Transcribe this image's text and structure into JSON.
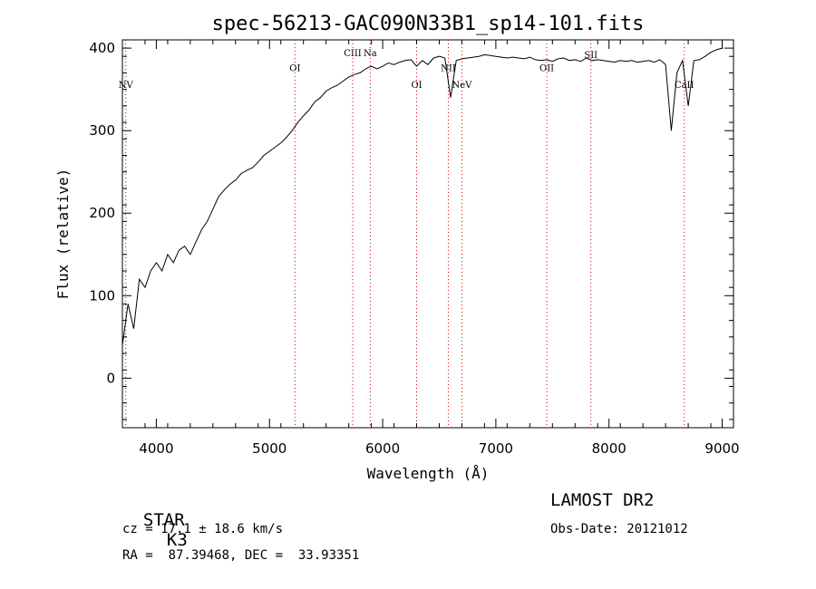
{
  "chart_data": {
    "type": "line",
    "title": "spec-56213-GAC090N33B1_sp14-101.fits",
    "xlabel": "Wavelength (Å)",
    "ylabel": "Flux (relative)",
    "xlim": [
      3700,
      9100
    ],
    "ylim": [
      -60,
      410
    ],
    "xticks": [
      4000,
      5000,
      6000,
      7000,
      8000,
      9000
    ],
    "yticks": [
      0,
      100,
      200,
      300,
      400
    ],
    "grid": false,
    "series": [
      {
        "x": [
          3700,
          3750,
          3800,
          3850,
          3900,
          3950,
          4000,
          4050,
          4100,
          4150,
          4200,
          4250,
          4300,
          4350,
          4400,
          4450,
          4500,
          4550,
          4600,
          4650,
          4700,
          4750,
          4800,
          4850,
          4900,
          4950,
          5000,
          5050,
          5100,
          5150,
          5200,
          5250,
          5300,
          5350,
          5400,
          5450,
          5500,
          5550,
          5600,
          5650,
          5700,
          5750,
          5800,
          5850,
          5900,
          5950,
          6000,
          6050,
          6100,
          6150,
          6200,
          6250,
          6300,
          6350,
          6400,
          6450,
          6500,
          6550,
          6600,
          6650,
          6700,
          6750,
          6800,
          6850,
          6900,
          6950,
          7000,
          7050,
          7100,
          7150,
          7200,
          7250,
          7300,
          7350,
          7400,
          7450,
          7500,
          7550,
          7600,
          7650,
          7700,
          7750,
          7800,
          7850,
          7900,
          7950,
          8000,
          8050,
          8100,
          8150,
          8200,
          8250,
          8300,
          8350,
          8400,
          8450,
          8500,
          8550,
          8600,
          8650,
          8700,
          8750,
          8800,
          8850,
          8900,
          8950,
          9000
        ],
        "y": [
          40,
          90,
          60,
          120,
          110,
          130,
          140,
          130,
          150,
          140,
          155,
          160,
          150,
          165,
          180,
          190,
          205,
          220,
          228,
          235,
          240,
          248,
          252,
          255,
          262,
          270,
          275,
          280,
          285,
          292,
          300,
          310,
          318,
          325,
          335,
          340,
          348,
          352,
          355,
          360,
          365,
          368,
          370,
          375,
          378,
          375,
          378,
          382,
          380,
          383,
          385,
          386,
          378,
          385,
          380,
          388,
          390,
          388,
          340,
          385,
          387,
          388,
          389,
          390,
          392,
          391,
          390,
          389,
          388,
          389,
          388,
          387,
          389,
          386,
          385,
          386,
          384,
          387,
          388,
          385,
          386,
          384,
          388,
          385,
          386,
          385,
          384,
          383,
          385,
          384,
          385,
          383,
          384,
          385,
          383,
          386,
          380,
          300,
          370,
          385,
          330,
          385,
          386,
          390,
          395,
          398,
          400
        ]
      }
    ],
    "spectral_lines": [
      {
        "label": "NV",
        "wavelength": 3730,
        "label_flux": 352
      },
      {
        "label": "OI",
        "wavelength": 5225,
        "label_flux": 372
      },
      {
        "label": "CIII",
        "wavelength": 5735,
        "label_flux": 390
      },
      {
        "label": "Na",
        "wavelength": 5890,
        "label_flux": 390
      },
      {
        "label": "OI",
        "wavelength": 6300,
        "label_flux": 352
      },
      {
        "label": "NII",
        "wavelength": 6580,
        "label_flux": 372
      },
      {
        "label": "NeV",
        "wavelength": 6700,
        "label_flux": 352
      },
      {
        "label": "OII",
        "wavelength": 7450,
        "label_flux": 372
      },
      {
        "label": "SII",
        "wavelength": 7840,
        "label_flux": 388
      },
      {
        "label": "CaII",
        "wavelength": 8665,
        "label_flux": 352
      }
    ],
    "colors": {
      "spectrum": "#000000",
      "line_markers": "#cc0000"
    }
  },
  "info": {
    "class_label": "STAR",
    "subclass": "K3",
    "survey": "LAMOST DR2",
    "cz": "cz = 17.1 ± 18.6 km/s",
    "obs_date": "Obs-Date: 20121012",
    "coords": "RA =  87.39468, DEC =  33.93351"
  }
}
